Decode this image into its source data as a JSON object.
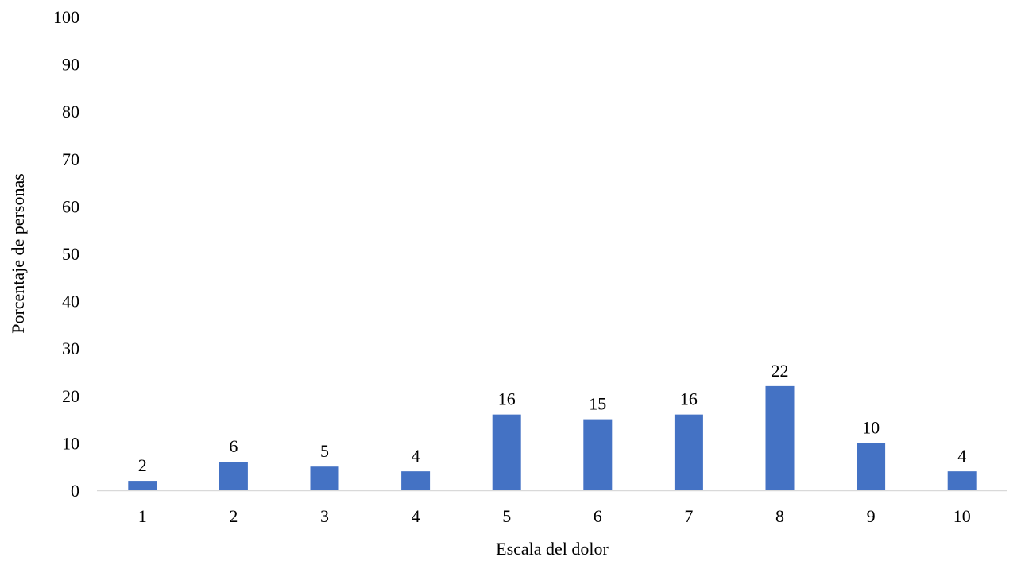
{
  "chart_data": {
    "type": "bar",
    "title": "",
    "xlabel": "Escala del dolor",
    "ylabel": "Porcentaje de personas",
    "categories": [
      "1",
      "2",
      "3",
      "4",
      "5",
      "6",
      "7",
      "8",
      "9",
      "10"
    ],
    "values": [
      2,
      6,
      5,
      4,
      16,
      15,
      16,
      22,
      10,
      4
    ],
    "ylim": [
      0,
      100
    ],
    "yticks": [
      0,
      10,
      20,
      30,
      40,
      50,
      60,
      70,
      80,
      90,
      100
    ],
    "grid": false,
    "legend": "none",
    "data_labels": true,
    "colors": {
      "bar": "#4472C4",
      "axis": "#D9D9D9"
    }
  }
}
